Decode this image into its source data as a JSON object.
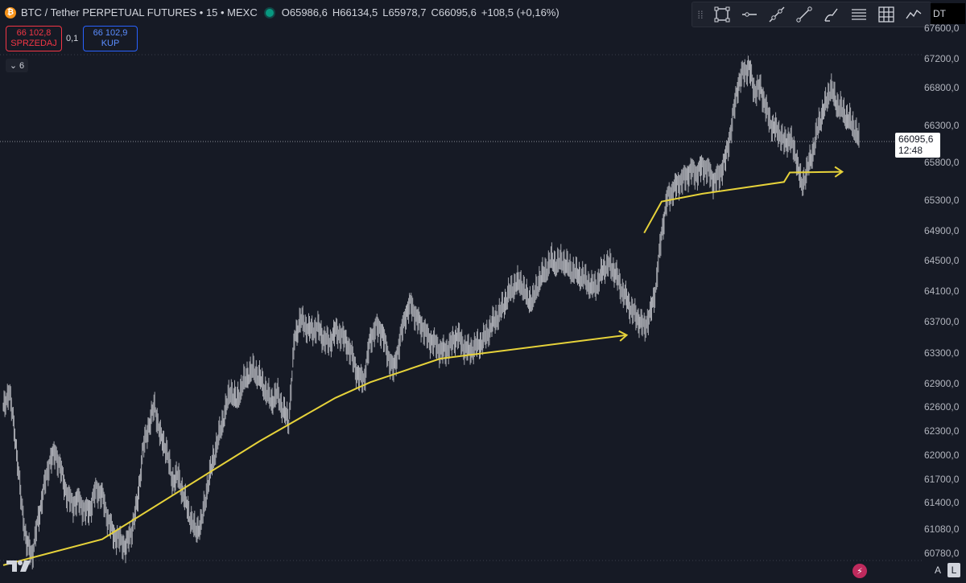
{
  "header": {
    "logo_glyph": "₿",
    "title": "BTC / Tether PERPETUAL FUTURES • 15 • MEXC",
    "ohlc": [
      {
        "key": "O",
        "value": "65986,6"
      },
      {
        "key": "H",
        "value": "66134,5"
      },
      {
        "key": "L",
        "value": "65978,7"
      },
      {
        "key": "C",
        "value": "66095,6"
      }
    ],
    "change": "+108,5 (+0,16%)"
  },
  "trade": {
    "sell_price": "66 102,8",
    "sell_label": "SPRZEDAJ",
    "spread": "0,1",
    "buy_price": "66 102,9",
    "buy_label": "KUP"
  },
  "indicator_toggle": {
    "chevron": "⌄",
    "count": "6"
  },
  "toolbar": {
    "tools": [
      "rectangle-icon",
      "horizontal-line-icon",
      "trend-line-icon",
      "ray-icon",
      "brush-icon",
      "fib-retracement-icon",
      "grid-icon",
      "line-chart-icon"
    ]
  },
  "currency_chip": "DT",
  "price_axis": {
    "labels": [
      "67600,0",
      "67200,0",
      "66800,0",
      "66300,0",
      "65800,0",
      "65300,0",
      "64900,0",
      "64500,0",
      "64100,0",
      "63700,0",
      "63300,0",
      "62900,0",
      "62600,0",
      "62300,0",
      "62000,0",
      "61700,0",
      "61400,0",
      "61080,0",
      "60780,0"
    ]
  },
  "price_tag": {
    "price": "66095,6",
    "countdown": "12:48"
  },
  "bottom": {
    "mode_auto": "A",
    "mode_log": "L",
    "bolt": "⚡"
  },
  "colors": {
    "background": "#161a25",
    "candle": "#a7a9b0",
    "trend": "#e6d23a",
    "sell": "#f23645",
    "buy": "#2962ff",
    "live": "#089981"
  },
  "chart_data": {
    "type": "line",
    "symbol": "BTC/USDT perpetual",
    "interval": "15",
    "ylim": [
      60700,
      67700
    ],
    "series": [
      {
        "values": [
          62700,
          62950,
          62400,
          61600,
          61000,
          60850,
          61300,
          61700,
          62050,
          62150,
          61900,
          61600,
          61500,
          61550,
          61400,
          61450,
          61700,
          61600,
          61300,
          61100,
          61050,
          60950,
          61150,
          61500,
          62200,
          62500,
          62750,
          62350,
          62200,
          61800,
          61850,
          61600,
          61350,
          61150,
          61250,
          61700,
          62050,
          62350,
          62650,
          62950,
          62800,
          63000,
          63150,
          63200,
          63100,
          62950,
          62800,
          62900,
          62700,
          62550,
          63600,
          63850,
          63750,
          63700,
          63750,
          63600,
          63550,
          63700,
          63650,
          63550,
          63350,
          63100,
          63100,
          63600,
          63750,
          63700,
          63400,
          63200,
          63550,
          63900,
          64050,
          63850,
          63750,
          63600,
          63550,
          63450,
          63450,
          63550,
          63650,
          63500,
          63450,
          63500,
          63550,
          63650,
          63800,
          63900,
          64050,
          64200,
          64300,
          64300,
          64100,
          64100,
          64350,
          64450,
          64600,
          64550,
          64600,
          64500,
          64450,
          64400,
          64350,
          64250,
          64300,
          64500,
          64550,
          64450,
          64250,
          64100,
          63950,
          63850,
          63750,
          63900,
          64250,
          64950,
          65400,
          65500,
          65600,
          65650,
          65750,
          65700,
          65800,
          65750,
          65600,
          65700,
          65900,
          66300,
          66800,
          67000,
          67050,
          66750,
          66800,
          66500,
          66300,
          66250,
          66100,
          66150,
          65950,
          65550,
          65750,
          66000,
          66350,
          66550,
          66800,
          66600,
          66500,
          66400,
          66300,
          66100
        ]
      }
    ],
    "annotations": [
      {
        "type": "polyline",
        "points": [
          [
            0,
            60720
          ],
          [
            17,
            61050
          ],
          [
            44,
            62300
          ],
          [
            57,
            62850
          ],
          [
            63,
            63050
          ],
          [
            75,
            63350
          ],
          [
            107,
            63650
          ]
        ],
        "arrow": true
      },
      {
        "type": "polyline",
        "points": [
          [
            110,
            64950
          ],
          [
            113,
            65350
          ],
          [
            120,
            65450
          ],
          [
            134,
            65600
          ],
          [
            135,
            65720
          ],
          [
            144,
            65730
          ]
        ],
        "arrow": true
      }
    ]
  }
}
